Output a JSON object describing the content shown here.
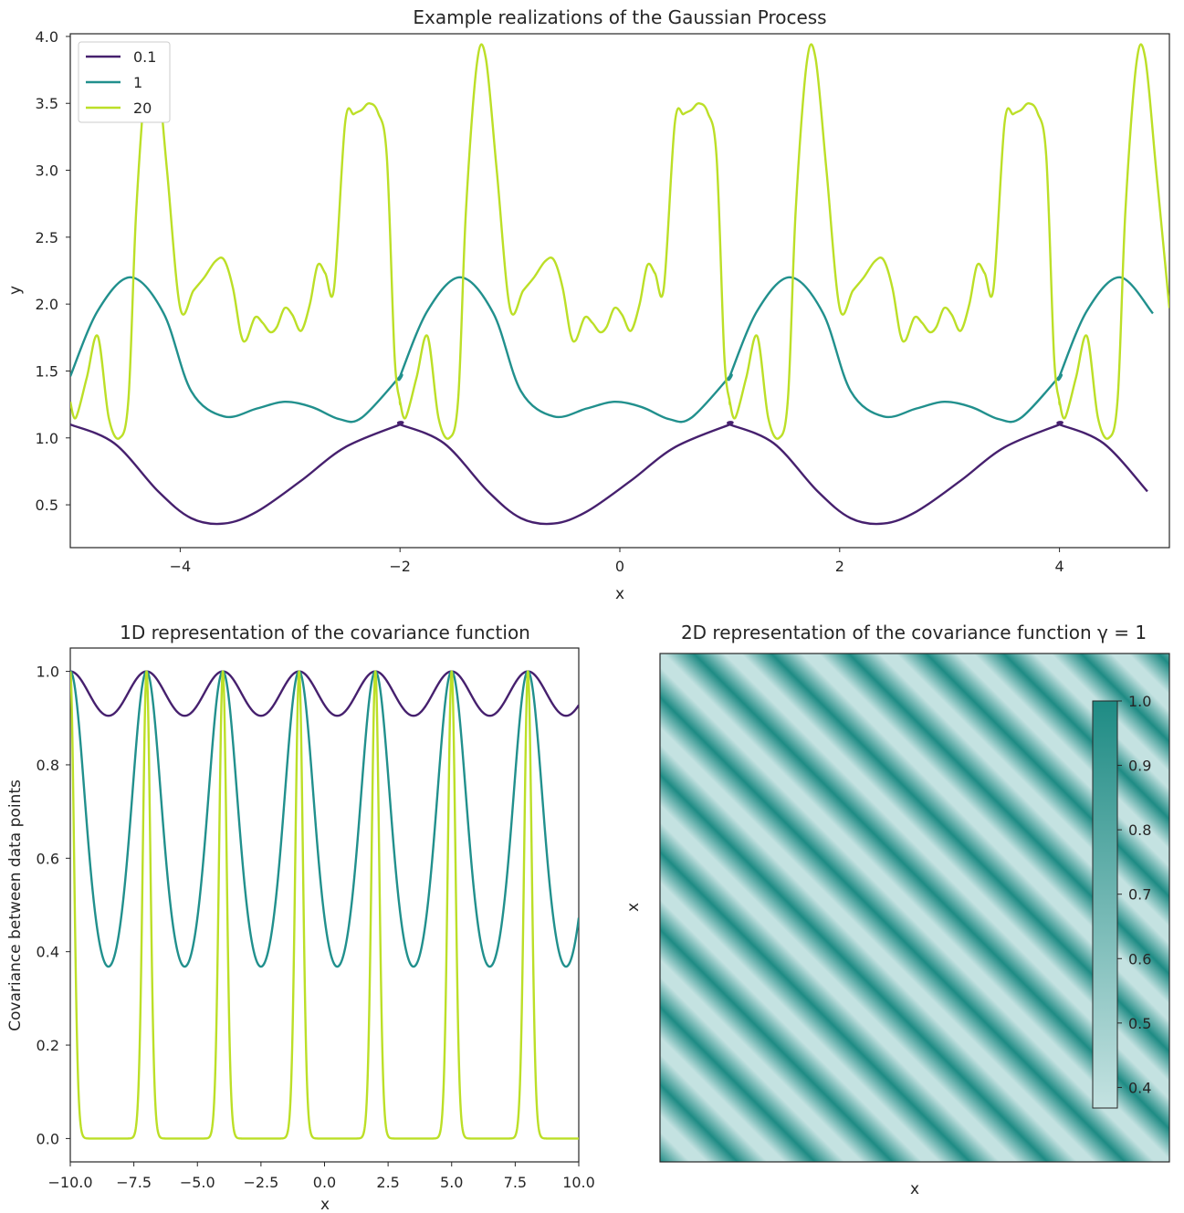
{
  "figure": {
    "series_colors": [
      "#46206e",
      "#21908d",
      "#bcdf27"
    ],
    "colormap": {
      "low": "#c4e2e1",
      "high": "#1e8b84"
    }
  },
  "chart_data": [
    {
      "type": "line",
      "title": "Example realizations of the Gaussian Process",
      "xlabel": "x",
      "ylabel": "y",
      "xlim": [
        -5,
        5
      ],
      "ylim": [
        0.18,
        4.02
      ],
      "xticks": [
        -4,
        -2,
        0,
        2,
        4
      ],
      "xtick_labels": [
        "−4",
        "−2",
        "0",
        "2",
        "4"
      ],
      "yticks": [
        0.5,
        1.0,
        1.5,
        2.0,
        2.5,
        3.0,
        3.5,
        4.0
      ],
      "ytick_labels": [
        "0.5",
        "1.0",
        "1.5",
        "2.0",
        "2.5",
        "3.0",
        "3.5",
        "4.0"
      ],
      "legend": {
        "position": "top-left",
        "entries": [
          "0.1",
          "1",
          "20"
        ]
      },
      "period": 3,
      "x_start": -5,
      "series": [
        {
          "name": "0.1",
          "color": "#46206e",
          "x": [
            -5,
            -4.6,
            -4.2,
            -3.9,
            -3.6,
            -3.3,
            -2.9,
            -2.5,
            -2.0
          ],
          "y": [
            1.1,
            0.96,
            0.6,
            0.4,
            0.36,
            0.45,
            0.68,
            0.93,
            1.1
          ]
        },
        {
          "name": "1",
          "color": "#21908d",
          "x": [
            -5,
            -4.75,
            -4.45,
            -4.15,
            -3.9,
            -3.6,
            -3.3,
            -3.05,
            -2.8,
            -2.55,
            -2.35,
            -2.0
          ],
          "y": [
            1.46,
            1.95,
            2.2,
            1.93,
            1.35,
            1.16,
            1.22,
            1.27,
            1.23,
            1.14,
            1.15,
            1.46
          ]
        },
        {
          "name": "20",
          "color": "#bcdf27",
          "x": [
            -5,
            -4.95,
            -4.85,
            -4.75,
            -4.65,
            -4.55,
            -4.47,
            -4.4,
            -4.3,
            -4.22,
            -4.12,
            -4.0,
            -3.88,
            -3.78,
            -3.68,
            -3.6,
            -3.52,
            -3.45,
            -3.4,
            -3.32,
            -3.25,
            -3.18,
            -3.12,
            -3.05,
            -2.98,
            -2.9,
            -2.82,
            -2.75,
            -2.68,
            -2.6,
            -2.5,
            -2.42,
            -2.35,
            -2.28,
            -2.2,
            -2.12,
            -2.05,
            -2.0
          ],
          "y": [
            1.27,
            1.15,
            1.45,
            1.76,
            1.15,
            1.0,
            1.3,
            2.7,
            3.8,
            3.84,
            3.0,
            1.97,
            2.1,
            2.2,
            2.32,
            2.33,
            2.12,
            1.78,
            1.73,
            1.9,
            1.86,
            1.79,
            1.83,
            1.97,
            1.92,
            1.8,
            2.0,
            2.29,
            2.23,
            2.12,
            3.35,
            3.42,
            3.45,
            3.5,
            3.43,
            3.1,
            1.62,
            1.27
          ]
        }
      ]
    },
    {
      "type": "line",
      "title": "1D representation of the covariance function",
      "xlabel": "x",
      "ylabel": "Covariance between data points",
      "xlim": [
        -10,
        10
      ],
      "ylim": [
        -0.05,
        1.05
      ],
      "xticks": [
        -10,
        -7.5,
        -5,
        -2.5,
        0,
        2.5,
        5,
        7.5,
        10
      ],
      "xtick_labels": [
        "−10.0",
        "−7.5",
        "−5.0",
        "−2.5",
        "0.0",
        "2.5",
        "5.0",
        "7.5",
        "10.0"
      ],
      "yticks": [
        0,
        0.2,
        0.4,
        0.6,
        0.8,
        1.0
      ],
      "ytick_labels": [
        "0.0",
        "0.2",
        "0.4",
        "0.6",
        "0.8",
        "1.0"
      ],
      "period": 3,
      "peaks_at": [
        -10,
        -7,
        -4,
        -1,
        2,
        5,
        8
      ],
      "series": [
        {
          "name": "0.1",
          "color": "#46206e",
          "min": 0.905,
          "max": 1.0
        },
        {
          "name": "1",
          "color": "#21908d",
          "min": 0.368,
          "max": 1.0
        },
        {
          "name": "20",
          "color": "#bcdf27",
          "min": 0.0,
          "max": 1.0
        }
      ]
    },
    {
      "type": "heatmap",
      "title": "2D representation of the covariance function γ = 1",
      "xlabel": "x",
      "ylabel": "x",
      "value_range": [
        0.368,
        1.0
      ],
      "colorbar": {
        "ticks": [
          0.4,
          0.5,
          0.6,
          0.7,
          0.8,
          0.9,
          1.0
        ],
        "tick_labels": [
          "0.4",
          "0.5",
          "0.6",
          "0.7",
          "0.8",
          "0.9",
          "1.0"
        ]
      }
    }
  ]
}
